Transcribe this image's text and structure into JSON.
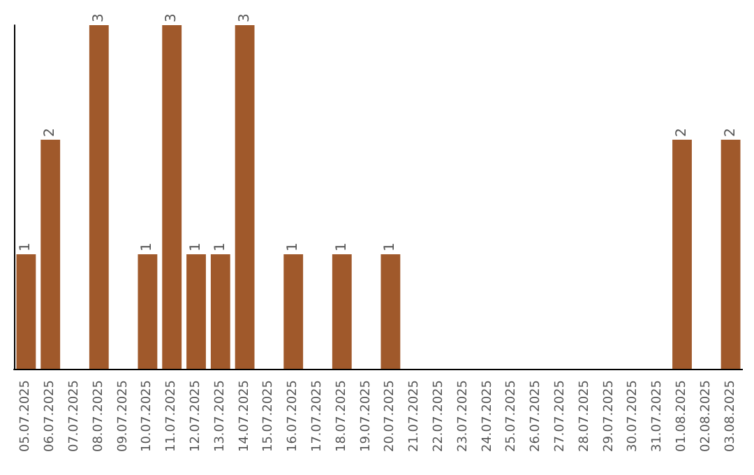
{
  "chart_data": {
    "type": "bar",
    "categories": [
      "05.07.2025",
      "06.07.2025",
      "07.07.2025",
      "08.07.2025",
      "09.07.2025",
      "10.07.2025",
      "11.07.2025",
      "12.07.2025",
      "13.07.2025",
      "14.07.2025",
      "15.07.2025",
      "16.07.2025",
      "17.07.2025",
      "18.07.2025",
      "19.07.2025",
      "20.07.2025",
      "21.07.2025",
      "22.07.2025",
      "23.07.2025",
      "24.07.2025",
      "25.07.2025",
      "26.07.2025",
      "27.07.2025",
      "28.07.2025",
      "29.07.2025",
      "30.07.2025",
      "31.07.2025",
      "01.08.2025",
      "02.08.2025",
      "03.08.2025"
    ],
    "values": [
      1,
      2,
      0,
      3,
      0,
      1,
      3,
      1,
      1,
      3,
      0,
      1,
      0,
      1,
      0,
      1,
      0,
      0,
      0,
      0,
      0,
      0,
      0,
      0,
      0,
      0,
      0,
      2,
      0,
      2
    ],
    "value_labels": [
      "1",
      "2",
      null,
      "3",
      null,
      "1",
      "3",
      "1",
      "1",
      "3",
      null,
      "1",
      null,
      "1",
      null,
      "1",
      null,
      null,
      null,
      null,
      null,
      null,
      null,
      null,
      null,
      null,
      null,
      "2",
      null,
      "2"
    ],
    "color": "#a0592b",
    "grid": false
  }
}
